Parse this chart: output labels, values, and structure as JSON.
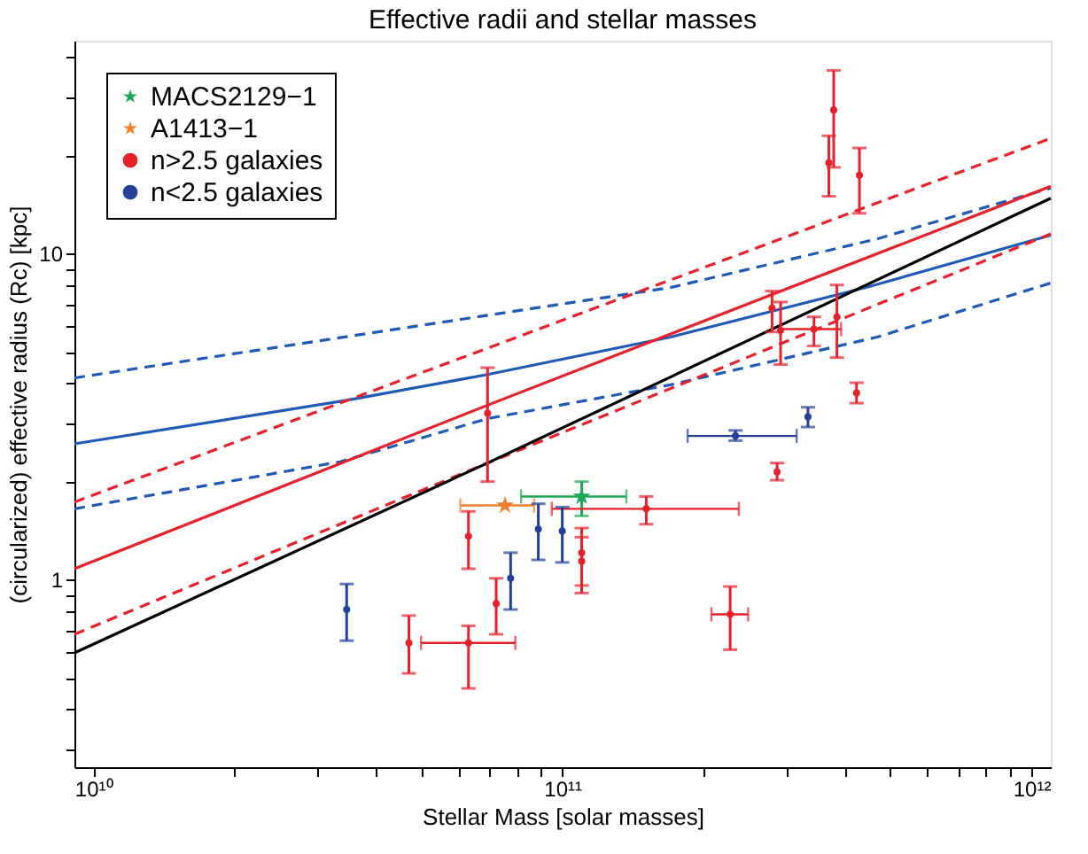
{
  "chart_data": {
    "type": "scatter",
    "title": "Effective radii and stellar masses",
    "xlabel": "Stellar Mass [solar masses]",
    "ylabel": "(circularized) effective radius (Rc) [kpc]",
    "log": "xy",
    "grid": false,
    "legend": "top left",
    "xlim": [
      9120000000.0,
      1100000000000.0
    ],
    "ylim": [
      0.266,
      45
    ],
    "xticks": [
      {
        "value": 10000000000.0,
        "label": "10¹⁰"
      },
      {
        "value": 20000000000.0,
        "label": null
      },
      {
        "value": 30000000000.0,
        "label": null
      },
      {
        "value": 40000000000.0,
        "label": null
      },
      {
        "value": 50000000000.0,
        "label": null
      },
      {
        "value": 60000000000.0,
        "label": null
      },
      {
        "value": 70000000000.0,
        "label": null
      },
      {
        "value": 80000000000.0,
        "label": null
      },
      {
        "value": 90000000000.0,
        "label": null
      },
      {
        "value": 100000000000.0,
        "label": "10¹¹"
      },
      {
        "value": 200000000000.0,
        "label": null
      },
      {
        "value": 300000000000.0,
        "label": null
      },
      {
        "value": 400000000000.0,
        "label": null
      },
      {
        "value": 500000000000.0,
        "label": null
      },
      {
        "value": 600000000000.0,
        "label": null
      },
      {
        "value": 700000000000.0,
        "label": null
      },
      {
        "value": 800000000000.0,
        "label": null
      },
      {
        "value": 900000000000.0,
        "label": null
      },
      {
        "value": 1000000000000.0,
        "label": "10¹²"
      }
    ],
    "yticks": [
      {
        "value": 0.3,
        "label": null
      },
      {
        "value": 0.4,
        "label": null
      },
      {
        "value": 0.5,
        "label": null
      },
      {
        "value": 0.6,
        "label": null
      },
      {
        "value": 0.7,
        "label": null
      },
      {
        "value": 0.8,
        "label": null
      },
      {
        "value": 0.9,
        "label": null
      },
      1,
      {
        "value": 2,
        "label": null
      },
      {
        "value": 3,
        "label": null
      },
      {
        "value": 4,
        "label": null
      },
      {
        "value": 5,
        "label": null
      },
      {
        "value": 6,
        "label": null
      },
      {
        "value": 7,
        "label": null
      },
      {
        "value": 8,
        "label": null
      },
      {
        "value": 9,
        "label": null
      },
      10,
      {
        "value": 20,
        "label": null
      },
      {
        "value": 30,
        "label": null
      },
      {
        "value": 40,
        "label": null
      }
    ],
    "series": [
      {
        "type": "line",
        "color": "#1f5ab8",
        "line_style": "solid",
        "x": [
          9120000000.0,
          34700000000.0,
          69300000000.0,
          170000000000.0,
          453000000000.0,
          1100000000000.0
        ],
        "values": [
          2.61,
          3.55,
          4.26,
          5.55,
          7.94,
          11.4
        ]
      },
      {
        "type": "line",
        "color": "#1f5ab8",
        "line_style": "dashed",
        "x": [
          9120000000.0,
          61700000000.0,
          170000000000.0,
          469000000000.0,
          1100000000000.0
        ],
        "values": [
          4.16,
          6.31,
          7.87,
          11.1,
          15.9
        ]
      },
      {
        "type": "line",
        "color": "#1f5ab8",
        "line_style": "dashed",
        "x": [
          9120000000.0,
          33600000000.0,
          69300000000.0,
          170000000000.0,
          469000000000.0,
          1100000000000.0
        ],
        "values": [
          1.65,
          2.3,
          3.12,
          3.96,
          5.55,
          8.13
        ]
      },
      {
        "type": "line",
        "color": "#e8202a",
        "line_style": "dashed",
        "x": [
          9120000000.0,
          1100000000000.0
        ],
        "values": [
          1.73,
          22.6
        ]
      },
      {
        "type": "line",
        "color": "#e8202a",
        "line_style": "dashed",
        "x": [
          9120000000.0,
          69300000000.0,
          1100000000000.0
        ],
        "values": [
          0.68,
          2.28,
          11.5
        ]
      },
      {
        "type": "line",
        "color": "#e8202a",
        "line_style": "solid",
        "x": [
          9120000000.0,
          69300000000.0,
          1100000000000.0
        ],
        "values": [
          1.08,
          3.43,
          16.1
        ]
      },
      {
        "type": "line",
        "color": "#000000",
        "line_style": "solid",
        "x": [
          9120000000.0,
          69300000000.0,
          1100000000000.0
        ],
        "values": [
          0.596,
          2.28,
          14.8
        ]
      },
      {
        "name": "MACS2129−1",
        "marker": "star",
        "color": "#1aaa55",
        "x": [
          110000000000.0
        ],
        "values": [
          1.8
        ],
        "errors": [
          [
            1.57,
            2.0
          ]
        ],
        "xerrors": [
          [
            81700000000.0,
            137000000000.0
          ]
        ]
      },
      {
        "name": "A1413−1",
        "marker": "star",
        "color": "#f07f2a",
        "x": [
          75500000000.0
        ],
        "values": [
          1.69
        ],
        "errors": [
          null
        ],
        "xerrors": [
          [
            60600000000.0,
            87100000000.0
          ]
        ]
      },
      {
        "name": "n>2.5 galaxies",
        "marker": "circle",
        "color": "#e8202a",
        "x": [
          69300000000.0,
          47100000000.0,
          63100000000.0,
          63100000000.0,
          72300000000.0,
          110000000000.0,
          110000000000.0,
          151000000000.0,
          228000000000.0,
          287000000000.0,
          280000000000.0,
          292000000000.0,
          344000000000.0,
          385000000000.0,
          424000000000.0,
          370000000000.0,
          379000000000.0,
          430000000000.0
        ],
        "values": [
          3.24,
          0.64,
          0.64,
          1.36,
          0.845,
          1.21,
          1.14,
          1.65,
          0.783,
          2.14,
          6.81,
          5.82,
          5.87,
          6.4,
          3.74,
          19.0,
          27.6,
          17.4
        ],
        "errors": [
          [
            2.0,
            4.47
          ],
          [
            0.516,
            0.776
          ],
          [
            0.464,
            0.722
          ],
          [
            1.08,
            1.62
          ],
          [
            0.68,
            1.01
          ],
          [
            0.96,
            1.44
          ],
          [
            0.91,
            1.35
          ],
          [
            1.48,
            1.8
          ],
          [
            0.61,
            0.953
          ],
          [
            2.02,
            2.28
          ],
          [
            5.75,
            7.68
          ],
          [
            4.57,
            7.11
          ],
          [
            5.21,
            6.4
          ],
          [
            4.8,
            8.02
          ],
          [
            3.48,
            4.02
          ],
          [
            15.0,
            23.0
          ],
          [
            18.4,
            36.5
          ],
          [
            13.3,
            21.1
          ]
        ],
        "xerrors": [
          null,
          null,
          [
            50000000000.0,
            79400000000.0
          ],
          null,
          null,
          null,
          null,
          [
            95000000000.0,
            238000000000.0
          ],
          [
            208000000000.0,
            249000000000.0
          ],
          null,
          null,
          null,
          [
            292000000000.0,
            393000000000.0
          ],
          null,
          null,
          null,
          null,
          null
        ]
      },
      {
        "name": "n<2.5 galaxies",
        "marker": "circle",
        "color": "#22409a",
        "x": [
          34700000000.0,
          77600000000.0,
          88900000000.0,
          100000000000.0,
          234000000000.0,
          334000000000.0
        ],
        "values": [
          0.81,
          1.01,
          1.43,
          1.41,
          2.76,
          3.16
        ],
        "errors": [
          [
            0.65,
            0.97
          ],
          [
            0.81,
            1.21
          ],
          [
            1.15,
            1.71
          ],
          [
            1.13,
            1.67
          ],
          [
            2.67,
            2.87
          ],
          [
            2.94,
            3.38
          ]
        ],
        "xerrors": [
          null,
          null,
          null,
          null,
          [
            185000000000.0,
            316000000000.0
          ],
          null
        ]
      }
    ]
  }
}
